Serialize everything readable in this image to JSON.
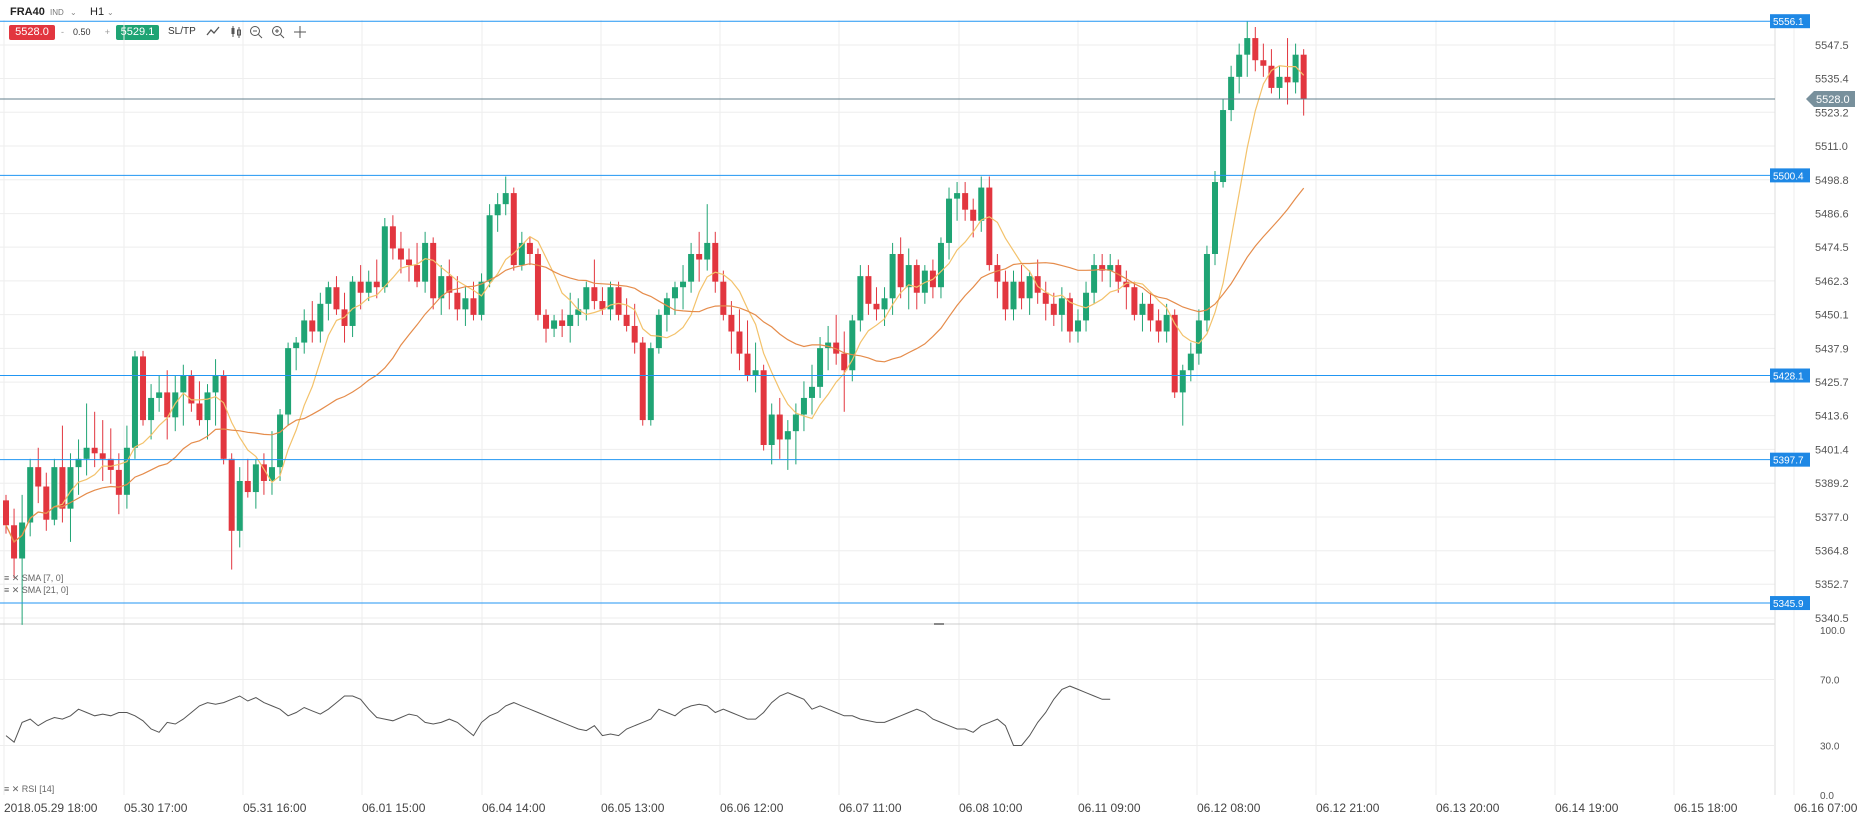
{
  "toolbar": {
    "symbol": "FRA40",
    "symbol_sub": "IND",
    "timeframe": "H1",
    "sell_price": "5528.0",
    "buy_price": "5529.1",
    "quantity": "0.50",
    "minus": "-",
    "plus": "+",
    "sltp": "SL/TP",
    "tools": [
      "line-chart-icon",
      "candles-icon",
      "zoom-out-icon",
      "zoom-in-icon",
      "crosshair-icon"
    ]
  },
  "colors": {
    "up": "#1fa474",
    "down": "#e2363f",
    "hline": "#2196f3",
    "label_bg": "#1e88e5",
    "sma7": "#f3c26b",
    "sma21": "#e58c4b",
    "rsi": "#555555",
    "grid": "#eeeeee",
    "current_line": "#607d8b"
  },
  "indicators": {
    "sma7_label": "SMA [7, 0]",
    "sma21_label": "SMA [21, 0]",
    "rsi_label": "RSI [14]"
  },
  "chart_data": {
    "type": "candlestick",
    "y_axis": {
      "ticks": [
        "5547.5",
        "5535.4",
        "5523.2",
        "5511.0",
        "5498.8",
        "5486.6",
        "5474.5",
        "5462.3",
        "5450.1",
        "5437.9",
        "5425.7",
        "5413.6",
        "5401.4",
        "5389.2",
        "5377.0",
        "5364.8",
        "5352.7",
        "5340.5"
      ],
      "range": [
        5338,
        5560
      ]
    },
    "x_axis": {
      "labels": [
        "2018.05.29 18:00",
        "05.30 17:00",
        "05.31 16:00",
        "06.01 15:00",
        "06.04 14:00",
        "06.05 13:00",
        "06.06 12:00",
        "06.07 11:00",
        "06.08 10:00",
        "06.11 09:00",
        "06.12 08:00",
        "06.12 21:00",
        "06.13 20:00",
        "06.14 19:00",
        "06.15 18:00",
        "06.16 07:00"
      ]
    },
    "horizontal_lines": [
      {
        "label": "5556.1",
        "value": 5556.1
      },
      {
        "label": "5500.4",
        "value": 5500.4
      },
      {
        "label": "5428.1",
        "value": 5428.1
      },
      {
        "label": "5397.7",
        "value": 5397.7
      },
      {
        "label": "5345.9",
        "value": 5345.9
      }
    ],
    "current_price": {
      "label": "5528.0",
      "value": 5528.0
    },
    "candles": [
      [
        5383,
        5385,
        5371,
        5374
      ],
      [
        5374,
        5380,
        5355,
        5362
      ],
      [
        5362,
        5385,
        5338,
        5375
      ],
      [
        5375,
        5398,
        5370,
        5395
      ],
      [
        5395,
        5402,
        5382,
        5388
      ],
      [
        5388,
        5393,
        5372,
        5376
      ],
      [
        5376,
        5398,
        5374,
        5395
      ],
      [
        5395,
        5410,
        5375,
        5380
      ],
      [
        5380,
        5400,
        5368,
        5395
      ],
      [
        5395,
        5405,
        5385,
        5398
      ],
      [
        5398,
        5418,
        5392,
        5402
      ],
      [
        5402,
        5415,
        5395,
        5400
      ],
      [
        5400,
        5412,
        5390,
        5398
      ],
      [
        5398,
        5409,
        5389,
        5394
      ],
      [
        5394,
        5400,
        5378,
        5385
      ],
      [
        5385,
        5410,
        5380,
        5402
      ],
      [
        5402,
        5437,
        5398,
        5435
      ],
      [
        5435,
        5437,
        5410,
        5412
      ],
      [
        5412,
        5425,
        5405,
        5420
      ],
      [
        5420,
        5428,
        5415,
        5422
      ],
      [
        5422,
        5430,
        5405,
        5413
      ],
      [
        5413,
        5428,
        5408,
        5422
      ],
      [
        5422,
        5432,
        5410,
        5428
      ],
      [
        5428,
        5430,
        5415,
        5418
      ],
      [
        5418,
        5426,
        5410,
        5412
      ],
      [
        5412,
        5425,
        5405,
        5422
      ],
      [
        5422,
        5434,
        5410,
        5428
      ],
      [
        5428,
        5430,
        5396,
        5398
      ],
      [
        5398,
        5400,
        5358,
        5372
      ],
      [
        5372,
        5395,
        5366,
        5390
      ],
      [
        5390,
        5398,
        5384,
        5386
      ],
      [
        5386,
        5398,
        5380,
        5396
      ],
      [
        5396,
        5400,
        5385,
        5390
      ],
      [
        5390,
        5408,
        5385,
        5395
      ],
      [
        5395,
        5416,
        5390,
        5414
      ],
      [
        5414,
        5440,
        5410,
        5438
      ],
      [
        5438,
        5442,
        5430,
        5440
      ],
      [
        5440,
        5452,
        5436,
        5448
      ],
      [
        5448,
        5455,
        5440,
        5444
      ],
      [
        5444,
        5458,
        5440,
        5454
      ],
      [
        5454,
        5462,
        5448,
        5460
      ],
      [
        5460,
        5464,
        5450,
        5452
      ],
      [
        5452,
        5458,
        5440,
        5446
      ],
      [
        5446,
        5464,
        5442,
        5462
      ],
      [
        5462,
        5468,
        5452,
        5458
      ],
      [
        5458,
        5466,
        5455,
        5462
      ],
      [
        5462,
        5470,
        5456,
        5460
      ],
      [
        5460,
        5485,
        5458,
        5482
      ],
      [
        5482,
        5486,
        5470,
        5474
      ],
      [
        5474,
        5480,
        5465,
        5470
      ],
      [
        5470,
        5474,
        5462,
        5468
      ],
      [
        5468,
        5476,
        5460,
        5462
      ],
      [
        5462,
        5480,
        5458,
        5476
      ],
      [
        5476,
        5478,
        5452,
        5456
      ],
      [
        5456,
        5468,
        5450,
        5464
      ],
      [
        5464,
        5470,
        5452,
        5458
      ],
      [
        5458,
        5464,
        5448,
        5452
      ],
      [
        5452,
        5460,
        5446,
        5456
      ],
      [
        5456,
        5462,
        5448,
        5450
      ],
      [
        5450,
        5465,
        5448,
        5462
      ],
      [
        5462,
        5490,
        5460,
        5486
      ],
      [
        5486,
        5494,
        5480,
        5490
      ],
      [
        5490,
        5500,
        5486,
        5494
      ],
      [
        5494,
        5496,
        5466,
        5468
      ],
      [
        5468,
        5480,
        5466,
        5476
      ],
      [
        5476,
        5478,
        5468,
        5472
      ],
      [
        5472,
        5474,
        5448,
        5450
      ],
      [
        5450,
        5452,
        5440,
        5445
      ],
      [
        5445,
        5450,
        5442,
        5448
      ],
      [
        5448,
        5452,
        5442,
        5446
      ],
      [
        5446,
        5458,
        5440,
        5450
      ],
      [
        5450,
        5456,
        5446,
        5452
      ],
      [
        5452,
        5462,
        5448,
        5460
      ],
      [
        5460,
        5470,
        5452,
        5455
      ],
      [
        5455,
        5460,
        5450,
        5452
      ],
      [
        5452,
        5462,
        5448,
        5460
      ],
      [
        5460,
        5462,
        5448,
        5450
      ],
      [
        5450,
        5456,
        5444,
        5446
      ],
      [
        5446,
        5454,
        5436,
        5440
      ],
      [
        5440,
        5442,
        5410,
        5412
      ],
      [
        5412,
        5440,
        5410,
        5438
      ],
      [
        5438,
        5452,
        5436,
        5450
      ],
      [
        5450,
        5458,
        5444,
        5456
      ],
      [
        5456,
        5462,
        5450,
        5460
      ],
      [
        5460,
        5468,
        5452,
        5462
      ],
      [
        5462,
        5476,
        5458,
        5472
      ],
      [
        5472,
        5480,
        5462,
        5470
      ],
      [
        5470,
        5490,
        5466,
        5476
      ],
      [
        5476,
        5480,
        5458,
        5462
      ],
      [
        5462,
        5466,
        5448,
        5450
      ],
      [
        5450,
        5455,
        5436,
        5444
      ],
      [
        5444,
        5452,
        5430,
        5436
      ],
      [
        5436,
        5448,
        5426,
        5428
      ],
      [
        5428,
        5440,
        5422,
        5430
      ],
      [
        5430,
        5432,
        5401,
        5403
      ],
      [
        5403,
        5418,
        5396,
        5414
      ],
      [
        5414,
        5420,
        5398,
        5405
      ],
      [
        5405,
        5412,
        5394,
        5408
      ],
      [
        5408,
        5418,
        5396,
        5414
      ],
      [
        5414,
        5426,
        5408,
        5420
      ],
      [
        5420,
        5432,
        5414,
        5424
      ],
      [
        5424,
        5442,
        5420,
        5438
      ],
      [
        5438,
        5446,
        5430,
        5440
      ],
      [
        5440,
        5450,
        5432,
        5436
      ],
      [
        5436,
        5444,
        5415,
        5430
      ],
      [
        5430,
        5450,
        5426,
        5448
      ],
      [
        5448,
        5468,
        5444,
        5464
      ],
      [
        5464,
        5468,
        5450,
        5454
      ],
      [
        5454,
        5460,
        5448,
        5452
      ],
      [
        5452,
        5460,
        5446,
        5456
      ],
      [
        5456,
        5476,
        5450,
        5472
      ],
      [
        5472,
        5478,
        5456,
        5460
      ],
      [
        5460,
        5474,
        5452,
        5468
      ],
      [
        5468,
        5470,
        5452,
        5458
      ],
      [
        5458,
        5468,
        5454,
        5466
      ],
      [
        5466,
        5470,
        5456,
        5460
      ],
      [
        5460,
        5478,
        5456,
        5476
      ],
      [
        5476,
        5496,
        5470,
        5492
      ],
      [
        5492,
        5498,
        5484,
        5494
      ],
      [
        5494,
        5498,
        5484,
        5488
      ],
      [
        5488,
        5492,
        5478,
        5484
      ],
      [
        5484,
        5500,
        5480,
        5496
      ],
      [
        5496,
        5500,
        5466,
        5468
      ],
      [
        5468,
        5472,
        5456,
        5462
      ],
      [
        5462,
        5466,
        5448,
        5452
      ],
      [
        5452,
        5466,
        5448,
        5462
      ],
      [
        5462,
        5468,
        5452,
        5456
      ],
      [
        5456,
        5466,
        5450,
        5464
      ],
      [
        5464,
        5470,
        5454,
        5458
      ],
      [
        5458,
        5462,
        5448,
        5454
      ],
      [
        5454,
        5458,
        5446,
        5450
      ],
      [
        5450,
        5460,
        5444,
        5456
      ],
      [
        5456,
        5458,
        5440,
        5444
      ],
      [
        5444,
        5452,
        5440,
        5448
      ],
      [
        5448,
        5462,
        5444,
        5458
      ],
      [
        5458,
        5472,
        5454,
        5468
      ],
      [
        5468,
        5472,
        5462,
        5466
      ],
      [
        5466,
        5472,
        5460,
        5468
      ],
      [
        5468,
        5470,
        5458,
        5462
      ],
      [
        5462,
        5466,
        5452,
        5460
      ],
      [
        5460,
        5462,
        5448,
        5450
      ],
      [
        5450,
        5458,
        5444,
        5454
      ],
      [
        5454,
        5458,
        5444,
        5448
      ],
      [
        5448,
        5452,
        5440,
        5444
      ],
      [
        5444,
        5454,
        5440,
        5450
      ],
      [
        5450,
        5452,
        5420,
        5422
      ],
      [
        5422,
        5432,
        5410,
        5430
      ],
      [
        5430,
        5440,
        5426,
        5436
      ],
      [
        5436,
        5452,
        5432,
        5448
      ],
      [
        5448,
        5475,
        5444,
        5472
      ],
      [
        5472,
        5502,
        5468,
        5498
      ],
      [
        5498,
        5528,
        5496,
        5524
      ],
      [
        5524,
        5540,
        5520,
        5536
      ],
      [
        5536,
        5548,
        5530,
        5544
      ],
      [
        5544,
        5556,
        5536,
        5550
      ],
      [
        5550,
        5554,
        5538,
        5542
      ],
      [
        5542,
        5548,
        5536,
        5540
      ],
      [
        5540,
        5546,
        5530,
        5532
      ],
      [
        5532,
        5540,
        5528,
        5536
      ],
      [
        5536,
        5550,
        5526,
        5534
      ],
      [
        5534,
        5548,
        5530,
        5544
      ],
      [
        5544,
        5546,
        5522,
        5528
      ]
    ],
    "rsi": [
      36,
      32,
      44,
      46,
      42,
      45,
      47,
      46,
      48,
      52,
      50,
      48,
      49,
      48,
      50,
      50,
      48,
      45,
      40,
      38,
      44,
      43,
      46,
      50,
      54,
      56,
      55,
      56,
      58,
      60,
      57,
      59,
      56,
      54,
      52,
      48,
      50,
      53,
      51,
      49,
      52,
      56,
      60,
      60,
      58,
      52,
      47,
      46,
      45,
      47,
      49,
      48,
      44,
      43,
      44,
      46,
      44,
      40,
      36,
      44,
      48,
      50,
      54,
      56,
      54,
      52,
      50,
      48,
      46,
      44,
      42,
      40,
      39,
      42,
      36,
      37,
      36,
      40,
      42,
      44,
      46,
      52,
      50,
      48,
      52,
      54,
      55,
      54,
      50,
      52,
      50,
      48,
      46,
      46,
      50,
      56,
      60,
      62,
      60,
      58,
      52,
      54,
      52,
      50,
      48,
      48,
      46,
      45,
      44,
      44,
      46,
      48,
      50,
      52,
      50,
      46,
      44,
      42,
      40,
      40,
      38,
      42,
      44,
      46,
      42,
      30,
      30,
      36,
      44,
      50,
      58,
      64,
      66,
      64,
      62,
      60,
      58,
      58
    ],
    "rsi_axis": [
      "100.0",
      "70.0",
      "30.0",
      "0.0"
    ]
  }
}
